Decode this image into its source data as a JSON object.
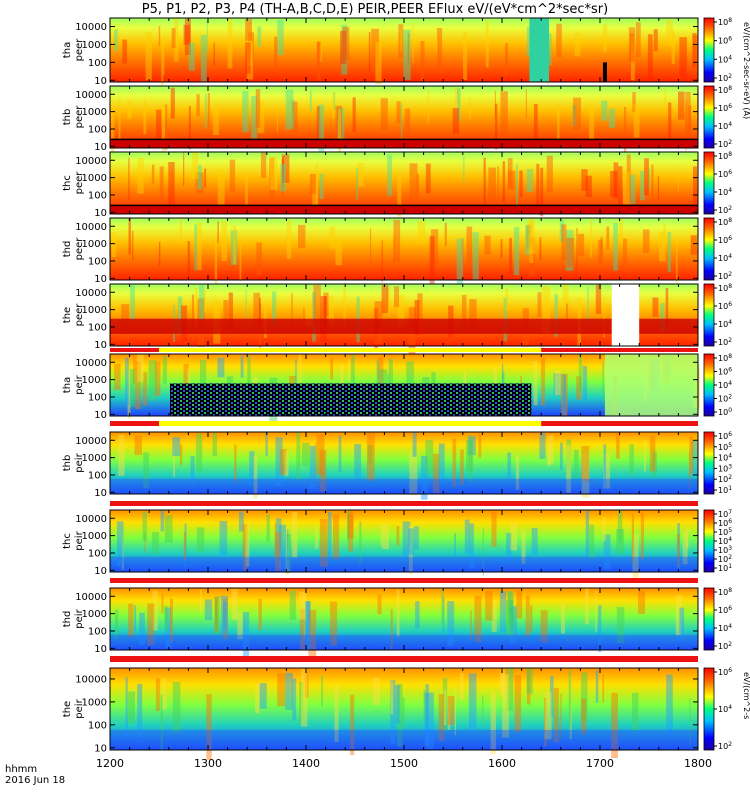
{
  "title": "P5, P1, P2, P3, P4 (TH-A,B,C,D,E) PEIR,PEER EFlux eV/(eV*cm^2*sec*sr)",
  "x_label_time": "hhmm",
  "x_label_date": "2016 Jun 18",
  "colors": {
    "background": "#ffffff",
    "low_flux": "#1a2aff",
    "mid_flux": "#33e0a0",
    "high_flux": "#ff3b00",
    "saturated": "#cc0000",
    "no_data": "#000000",
    "status_bar_red": "#ee1111",
    "status_bar_yellow": "#ffff00"
  },
  "chart_data": {
    "type": "heatmap",
    "x_axis": {
      "range": [
        1200,
        1800
      ],
      "ticks": [
        "1200",
        "1300",
        "1400",
        "1500",
        "1600",
        "1700",
        "1800"
      ]
    },
    "y_axis": {
      "scale": "log",
      "range": [
        8,
        30000
      ],
      "ticks": [
        "10",
        "100",
        "1000",
        "10000"
      ]
    },
    "panels": [
      {
        "probe": "tha",
        "species": "peer",
        "ylabel": [
          "tha",
          "peer"
        ],
        "colorbar_ticks": [
          "10^8",
          "10^6",
          "10^4",
          "10^2"
        ],
        "colorbar_label": "eV/(cm^2-sec-sr-eV) (A)"
      },
      {
        "probe": "thb",
        "species": "peer",
        "ylabel": [
          "thb",
          "peer"
        ],
        "colorbar_ticks": [
          "10^8",
          "10^6",
          "10^4",
          "10^2"
        ]
      },
      {
        "probe": "thc",
        "species": "peer",
        "ylabel": [
          "thc",
          "peer"
        ],
        "colorbar_ticks": [
          "10^8",
          "10^6",
          "10^4",
          "10^2"
        ]
      },
      {
        "probe": "thd",
        "species": "peer",
        "ylabel": [
          "thd",
          "peer"
        ],
        "colorbar_ticks": [
          "10^8",
          "10^6",
          "10^4",
          "10^2"
        ]
      },
      {
        "probe": "the",
        "species": "peer",
        "ylabel": [
          "the",
          "peer"
        ],
        "colorbar_ticks": [
          "10^8",
          "10^6",
          "10^4",
          "10^2"
        ]
      },
      {
        "probe": "tha",
        "species": "peir",
        "ylabel": [
          "tha",
          "peir"
        ],
        "colorbar_ticks": [
          "10^8",
          "10^6",
          "10^4",
          "10^2",
          "10^0"
        ]
      },
      {
        "probe": "thb",
        "species": "peir",
        "ylabel": [
          "thb",
          "peir"
        ],
        "colorbar_ticks": [
          "10^6",
          "10^5",
          "10^4",
          "10^3",
          "10^2",
          "10^1"
        ]
      },
      {
        "probe": "thc",
        "species": "peir",
        "ylabel": [
          "thc",
          "peir"
        ],
        "colorbar_ticks": [
          "10^7",
          "10^6",
          "10^5",
          "10^4",
          "10^3",
          "10^2",
          "10^1"
        ]
      },
      {
        "probe": "thd",
        "species": "peir",
        "ylabel": [
          "thd",
          "peir"
        ],
        "colorbar_ticks": [
          "10^8",
          "10^6",
          "10^4",
          "10^2"
        ]
      },
      {
        "probe": "the",
        "species": "peir",
        "ylabel": [
          "the",
          "peir"
        ],
        "colorbar_ticks": [
          "10^6",
          "10^4",
          "10^2"
        ],
        "colorbar_label": "eV/(cm^2-s"
      }
    ]
  }
}
